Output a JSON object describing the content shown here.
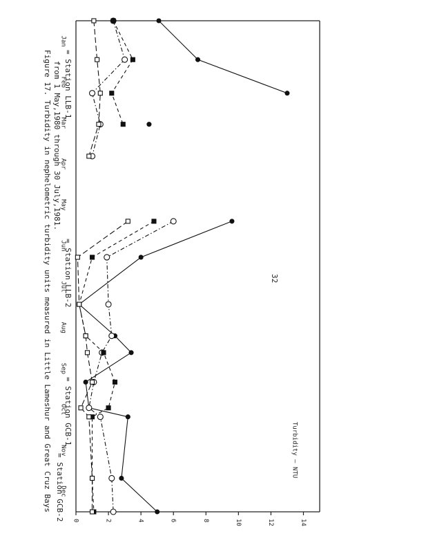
{
  "page_number": "32",
  "chart_data": {
    "type": "line",
    "title": "Figure 17. Turbidity in nephelometric turbidity units measured in Little Lameshur and Great Cruz Bays",
    "subtitle": "from 1 May,1980 through 30 July,1981.",
    "ylabel": "Turbidity — NTU",
    "categories": [
      "Jan",
      "Feb",
      "Mar",
      "Apr",
      "May",
      "Jun",
      "Jul",
      "Aug",
      "Sep",
      "Oct",
      "Nov",
      "Dec"
    ],
    "xlim": [
      0,
      12
    ],
    "ylim": [
      0,
      15
    ],
    "yticks": [
      0,
      2,
      4,
      6,
      8,
      10,
      12,
      14
    ],
    "series": [
      {
        "name": "= Station LLB-1",
        "color": "#111111",
        "style": "solid",
        "marker": "filled-circle",
        "x": [
          0,
          0.95,
          1.77,
          null,
          2.53,
          null,
          4.9,
          5.78,
          6.93,
          7.7,
          8.11,
          8.83,
          9.46,
          9.68,
          11.18,
          12
        ],
        "values": [
          5.1,
          7.5,
          13.0,
          null,
          4.5,
          null,
          9.6,
          4.0,
          0.2,
          2.4,
          3.4,
          0.6,
          0.8,
          3.2,
          2.8,
          5.0
        ]
      },
      {
        "name": "= Station LLB-2",
        "color": "#111111",
        "style": "dashdot",
        "marker": "open-circle",
        "x": [
          0,
          0.95,
          1.77,
          2.53,
          3.31,
          null,
          4.9,
          5.78,
          6.93,
          7.7,
          8.11,
          8.83,
          9.46,
          9.68,
          11.18,
          12
        ],
        "values": [
          2.3,
          3.0,
          1.0,
          1.5,
          1.0,
          null,
          6.0,
          1.9,
          2.0,
          2.2,
          1.6,
          1.1,
          0.8,
          1.5,
          2.2,
          2.3
        ]
      },
      {
        "name": "= Station GCB-1",
        "color": "#111111",
        "style": "dashed",
        "marker": "filled-square",
        "x": [
          0,
          0.95,
          1.77,
          2.53,
          null,
          4.9,
          5.78,
          6.93,
          7.7,
          8.11,
          8.83,
          9.46,
          9.68,
          11.18,
          12
        ],
        "values": [
          2.3,
          3.5,
          2.2,
          2.9,
          null,
          4.8,
          1.0,
          0.2,
          0.6,
          1.7,
          2.4,
          2.0,
          1.0,
          1.0,
          1.1
        ]
      },
      {
        "name": "= Station GCB-2",
        "color": "#111111",
        "style": "longdash",
        "marker": "open-square",
        "x": [
          0,
          0.95,
          1.77,
          2.53,
          3.31,
          null,
          4.9,
          5.78,
          6.93,
          7.7,
          8.11,
          8.83,
          9.46,
          9.68,
          11.18,
          12
        ],
        "values": [
          1.1,
          1.3,
          1.5,
          1.4,
          0.8,
          null,
          3.2,
          0.1,
          0.2,
          0.6,
          0.7,
          1.0,
          0.3,
          0.8,
          1.0,
          1.0
        ]
      }
    ]
  }
}
